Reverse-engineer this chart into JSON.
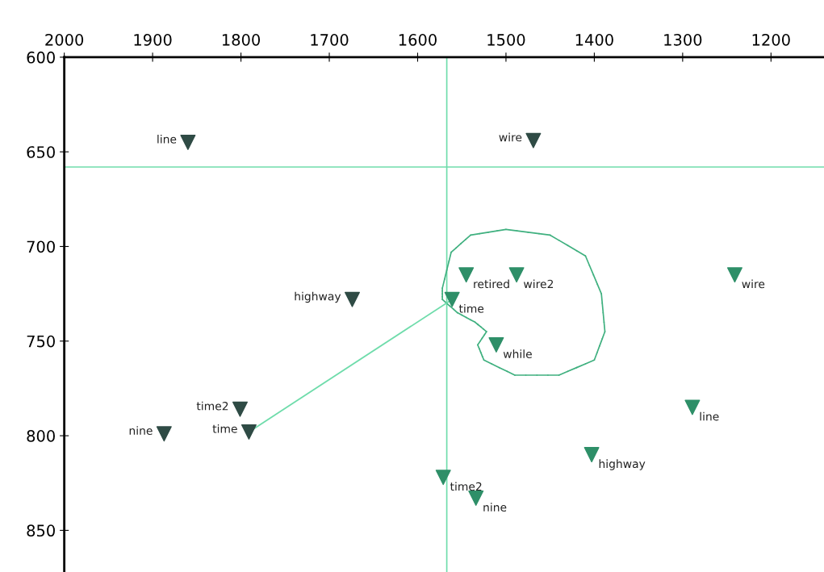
{
  "chart_data": {
    "type": "scatter",
    "series": [
      {
        "color": "#2f4b45",
        "x": [
          1860,
          1469,
          1674,
          1887,
          1801,
          1791
        ],
        "values": [
          645,
          644,
          728,
          799,
          786,
          798
        ]
      },
      {
        "color": "#2e8f68",
        "x": [
          1545,
          1488,
          1561,
          1511,
          1241,
          1289,
          1403,
          1571,
          1534
        ],
        "values": [
          715,
          715,
          728,
          752,
          715,
          785,
          810,
          822,
          833
        ]
      },
      {
        "type": "line",
        "color": "#6fdcab",
        "x": [
          1791,
          1561
        ],
        "values": [
          798,
          728
        ],
        "marker": "none"
      }
    ],
    "marker": "triangle",
    "xlim": [
      2000,
      1140
    ],
    "xticks": [
      2000,
      1900,
      1800,
      1700,
      1600,
      1500,
      1400,
      1300,
      1200
    ],
    "ylim": [
      872,
      600
    ],
    "yticks": [
      600,
      650,
      700,
      750,
      800,
      850
    ],
    "ref_lines": [
      {
        "axis": "x",
        "value": 1567,
        "color": "#6fdcab"
      },
      {
        "axis": "y",
        "value": 658,
        "color": "#6fdcab"
      }
    ],
    "grid": false,
    "legend": false,
    "annotations": [
      {
        "text": "line",
        "x": 1860,
        "y": 645
      },
      {
        "text": "wire",
        "x": 1469,
        "y": 644
      },
      {
        "text": "highway",
        "x": 1674,
        "y": 728
      },
      {
        "text": "nine",
        "x": 1887,
        "y": 799
      },
      {
        "text": "time2",
        "x": 1801,
        "y": 786
      },
      {
        "text": "time",
        "x": 1791,
        "y": 798
      },
      {
        "text": "retired",
        "x": 1545,
        "y": 715
      },
      {
        "text": "wire2",
        "x": 1488,
        "y": 715
      },
      {
        "text": "time",
        "x": 1561,
        "y": 728
      },
      {
        "text": "while",
        "x": 1511,
        "y": 752
      },
      {
        "text": "wire",
        "x": 1241,
        "y": 715
      },
      {
        "text": "line",
        "x": 1289,
        "y": 785
      },
      {
        "text": "highway",
        "x": 1403,
        "y": 810
      },
      {
        "text": "time2",
        "x": 1571,
        "y": 822
      },
      {
        "text": "nine",
        "x": 1534,
        "y": 833
      }
    ]
  }
}
